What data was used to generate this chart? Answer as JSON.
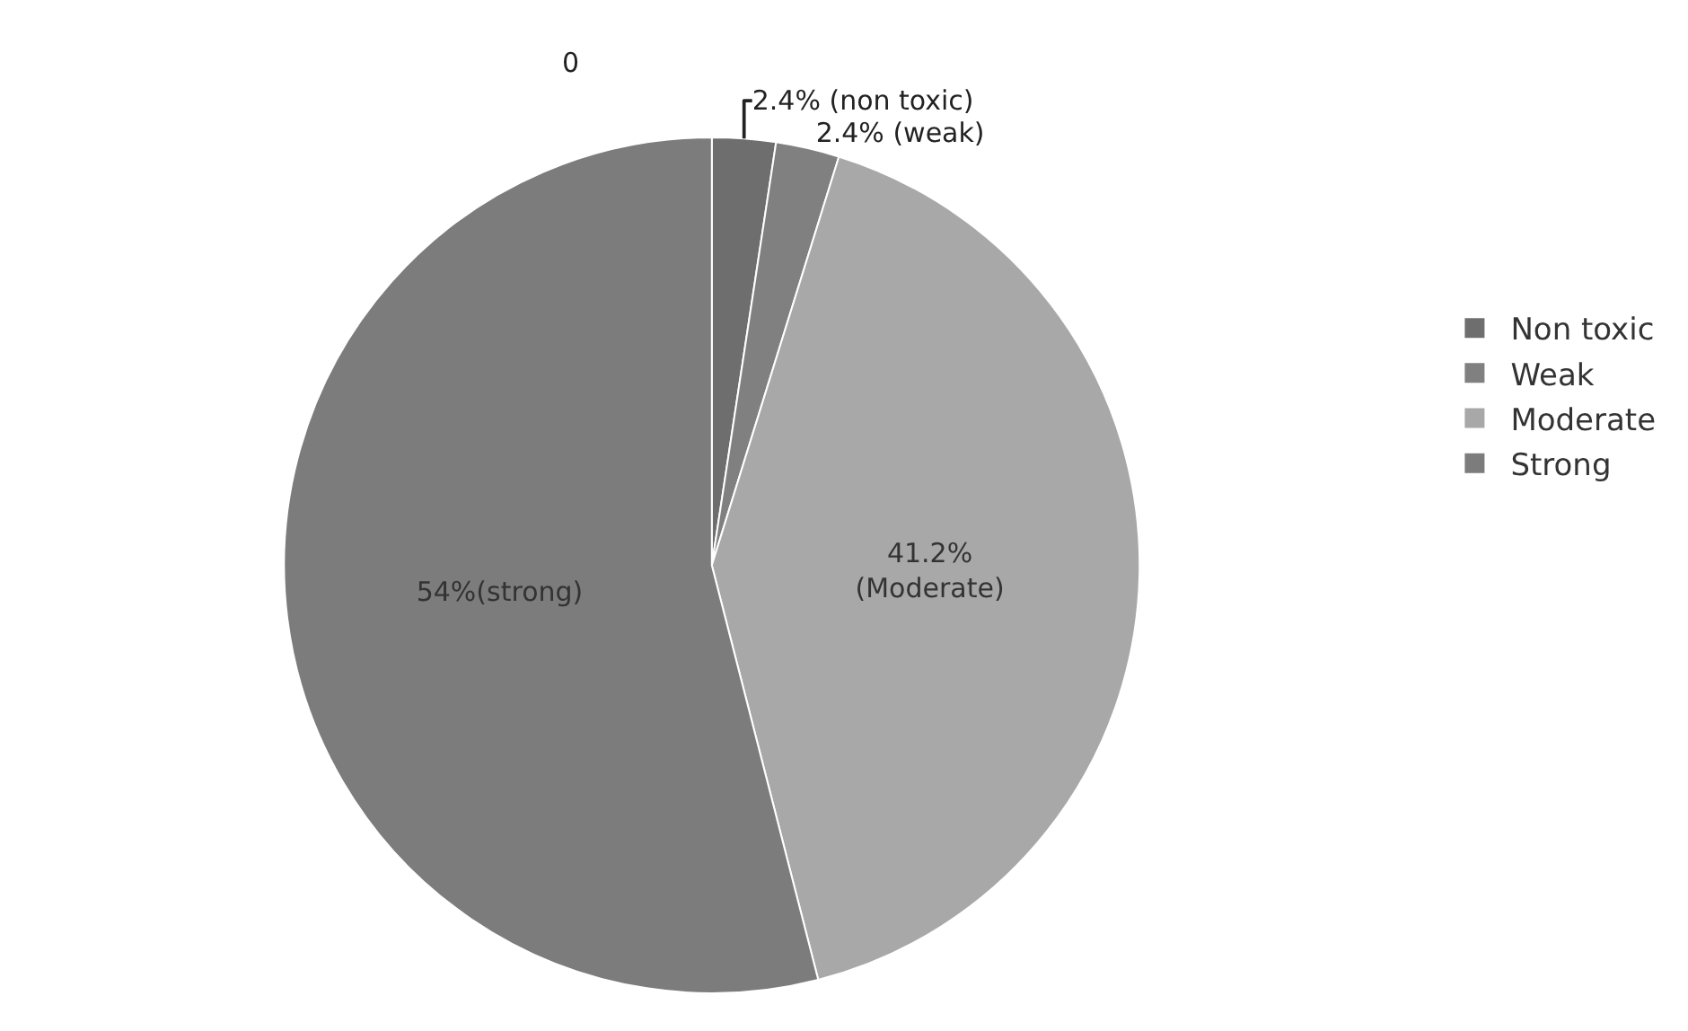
{
  "chart_data": {
    "type": "pie",
    "categories": [
      "Non toxic",
      "Weak",
      "Moderate",
      "Strong"
    ],
    "values": [
      2.4,
      2.4,
      41.2,
      54
    ],
    "colors": [
      "#6e6e6e",
      "#808080",
      "#a8a8a8",
      "#7c7c7c"
    ],
    "value_labels": [
      "2.4% (non toxic)",
      "2.4% (weak)",
      "41.2%\n(Moderate)",
      "54%(strong)"
    ],
    "annotations": [
      "0"
    ],
    "legend": "right"
  }
}
